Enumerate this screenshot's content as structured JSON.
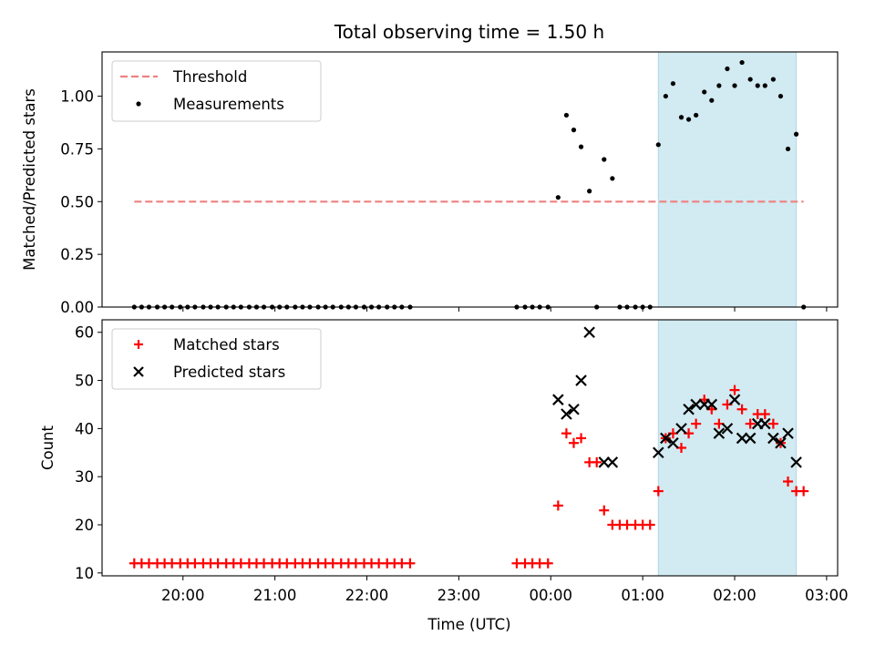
{
  "chart_data": {
    "type": "scatter",
    "title": "Total observing time = 1.50 h",
    "xlabel": "Time (UTC)",
    "x_ticks": [
      "20:00",
      "21:00",
      "22:00",
      "23:00",
      "00:00",
      "01:00",
      "02:00",
      "03:00"
    ],
    "x_range_hours": [
      19.12,
      27.12
    ],
    "observing_window_hours": [
      25.17,
      26.67
    ],
    "colors": {
      "threshold": "#f08080",
      "measurements": "#000000",
      "matched": "#ff0000",
      "predicted": "#000000",
      "window": "#add8e6"
    },
    "panels": [
      {
        "ylabel": "Matched/Predicted stars",
        "ylim": [
          0,
          1.21
        ],
        "y_ticks": [
          0.0,
          0.25,
          0.5,
          0.75,
          1.0
        ],
        "y_tick_labels": [
          "0.00",
          "0.25",
          "0.50",
          "0.75",
          "1.00"
        ],
        "legend_position": "upper-left",
        "threshold": {
          "name": "Threshold",
          "y": 0.5,
          "x_range": [
            19.47,
            26.75
          ]
        },
        "series": [
          {
            "name": "Measurements",
            "marker": "dot",
            "points": [
              [
                19.47,
                0
              ],
              [
                19.55,
                0
              ],
              [
                19.63,
                0
              ],
              [
                19.72,
                0
              ],
              [
                19.8,
                0
              ],
              [
                19.88,
                0
              ],
              [
                19.97,
                0
              ],
              [
                20.05,
                0
              ],
              [
                20.13,
                0
              ],
              [
                20.22,
                0
              ],
              [
                20.3,
                0
              ],
              [
                20.38,
                0
              ],
              [
                20.47,
                0
              ],
              [
                20.55,
                0
              ],
              [
                20.63,
                0
              ],
              [
                20.72,
                0
              ],
              [
                20.8,
                0
              ],
              [
                20.88,
                0
              ],
              [
                20.97,
                0
              ],
              [
                21.05,
                0
              ],
              [
                21.13,
                0
              ],
              [
                21.22,
                0
              ],
              [
                21.3,
                0
              ],
              [
                21.38,
                0
              ],
              [
                21.47,
                0
              ],
              [
                21.55,
                0
              ],
              [
                21.63,
                0
              ],
              [
                21.72,
                0
              ],
              [
                21.8,
                0
              ],
              [
                21.88,
                0
              ],
              [
                21.97,
                0
              ],
              [
                22.05,
                0
              ],
              [
                22.13,
                0
              ],
              [
                22.22,
                0
              ],
              [
                22.3,
                0
              ],
              [
                22.38,
                0
              ],
              [
                22.47,
                0
              ],
              [
                23.63,
                0
              ],
              [
                23.72,
                0
              ],
              [
                23.8,
                0
              ],
              [
                23.88,
                0
              ],
              [
                23.97,
                0
              ],
              [
                24.08,
                0.52
              ],
              [
                24.17,
                0.91
              ],
              [
                24.25,
                0.84
              ],
              [
                24.33,
                0.76
              ],
              [
                24.42,
                0.55
              ],
              [
                24.5,
                0
              ],
              [
                24.58,
                0.7
              ],
              [
                24.67,
                0.61
              ],
              [
                24.75,
                0
              ],
              [
                24.83,
                0
              ],
              [
                24.92,
                0
              ],
              [
                25.0,
                0
              ],
              [
                25.08,
                0
              ],
              [
                25.17,
                0.77
              ],
              [
                25.25,
                1.0
              ],
              [
                25.33,
                1.06
              ],
              [
                25.42,
                0.9
              ],
              [
                25.5,
                0.89
              ],
              [
                25.58,
                0.91
              ],
              [
                25.67,
                1.02
              ],
              [
                25.75,
                0.98
              ],
              [
                25.83,
                1.05
              ],
              [
                25.92,
                1.13
              ],
              [
                26.0,
                1.05
              ],
              [
                26.08,
                1.16
              ],
              [
                26.17,
                1.08
              ],
              [
                26.25,
                1.05
              ],
              [
                26.33,
                1.05
              ],
              [
                26.42,
                1.08
              ],
              [
                26.5,
                1.0
              ],
              [
                26.58,
                0.75
              ],
              [
                26.67,
                0.82
              ],
              [
                26.75,
                0
              ]
            ]
          }
        ]
      },
      {
        "ylabel": "Count",
        "ylim": [
          9.4,
          62.6
        ],
        "y_ticks": [
          10,
          20,
          30,
          40,
          50,
          60
        ],
        "y_tick_labels": [
          "10",
          "20",
          "30",
          "40",
          "50",
          "60"
        ],
        "legend_position": "upper-left",
        "series": [
          {
            "name": "Matched stars",
            "marker": "plus",
            "points": [
              [
                19.47,
                12
              ],
              [
                19.55,
                12
              ],
              [
                19.63,
                12
              ],
              [
                19.72,
                12
              ],
              [
                19.8,
                12
              ],
              [
                19.88,
                12
              ],
              [
                19.97,
                12
              ],
              [
                20.05,
                12
              ],
              [
                20.13,
                12
              ],
              [
                20.22,
                12
              ],
              [
                20.3,
                12
              ],
              [
                20.38,
                12
              ],
              [
                20.47,
                12
              ],
              [
                20.55,
                12
              ],
              [
                20.63,
                12
              ],
              [
                20.72,
                12
              ],
              [
                20.8,
                12
              ],
              [
                20.88,
                12
              ],
              [
                20.97,
                12
              ],
              [
                21.05,
                12
              ],
              [
                21.13,
                12
              ],
              [
                21.22,
                12
              ],
              [
                21.3,
                12
              ],
              [
                21.38,
                12
              ],
              [
                21.47,
                12
              ],
              [
                21.55,
                12
              ],
              [
                21.63,
                12
              ],
              [
                21.72,
                12
              ],
              [
                21.8,
                12
              ],
              [
                21.88,
                12
              ],
              [
                21.97,
                12
              ],
              [
                22.05,
                12
              ],
              [
                22.13,
                12
              ],
              [
                22.22,
                12
              ],
              [
                22.3,
                12
              ],
              [
                22.38,
                12
              ],
              [
                22.47,
                12
              ],
              [
                23.63,
                12
              ],
              [
                23.72,
                12
              ],
              [
                23.8,
                12
              ],
              [
                23.88,
                12
              ],
              [
                23.97,
                12
              ],
              [
                24.08,
                24
              ],
              [
                24.17,
                39
              ],
              [
                24.25,
                37
              ],
              [
                24.33,
                38
              ],
              [
                24.42,
                33
              ],
              [
                24.5,
                33
              ],
              [
                24.58,
                23
              ],
              [
                24.67,
                20
              ],
              [
                24.75,
                20
              ],
              [
                24.83,
                20
              ],
              [
                24.92,
                20
              ],
              [
                25.0,
                20
              ],
              [
                25.08,
                20
              ],
              [
                25.17,
                27
              ],
              [
                25.25,
                38
              ],
              [
                25.33,
                39
              ],
              [
                25.42,
                36
              ],
              [
                25.5,
                39
              ],
              [
                25.58,
                41
              ],
              [
                25.67,
                46
              ],
              [
                25.75,
                44
              ],
              [
                25.83,
                41
              ],
              [
                25.92,
                45
              ],
              [
                26.0,
                48
              ],
              [
                26.08,
                44
              ],
              [
                26.17,
                41
              ],
              [
                26.25,
                43
              ],
              [
                26.33,
                43
              ],
              [
                26.42,
                41
              ],
              [
                26.5,
                37
              ],
              [
                26.58,
                29
              ],
              [
                26.67,
                27
              ],
              [
                26.75,
                27
              ]
            ]
          },
          {
            "name": "Predicted stars",
            "marker": "x",
            "points": [
              [
                24.08,
                46
              ],
              [
                24.17,
                43
              ],
              [
                24.25,
                44
              ],
              [
                24.33,
                50
              ],
              [
                24.42,
                60
              ],
              [
                24.58,
                33
              ],
              [
                24.67,
                33
              ],
              [
                25.17,
                35
              ],
              [
                25.25,
                38
              ],
              [
                25.33,
                37
              ],
              [
                25.42,
                40
              ],
              [
                25.5,
                44
              ],
              [
                25.58,
                45
              ],
              [
                25.67,
                45
              ],
              [
                25.75,
                45
              ],
              [
                25.83,
                39
              ],
              [
                25.92,
                40
              ],
              [
                26.0,
                46
              ],
              [
                26.08,
                38
              ],
              [
                26.17,
                38
              ],
              [
                26.25,
                41
              ],
              [
                26.33,
                41
              ],
              [
                26.42,
                38
              ],
              [
                26.5,
                37
              ],
              [
                26.58,
                39
              ],
              [
                26.67,
                33
              ]
            ]
          }
        ]
      }
    ]
  }
}
